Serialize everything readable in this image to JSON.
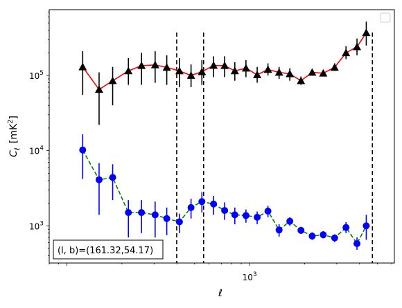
{
  "chart_data": {
    "type": "scatter",
    "xscale": "log",
    "yscale": "log",
    "xlim": [
      80,
      6200
    ],
    "ylim": [
      320,
      750000
    ],
    "xlabel": "ℓ",
    "ylabel_main": "C",
    "ylabel_sub": "ℓ",
    "ylabel_unit": "[mK",
    "ylabel_unit_sup": "2",
    "ylabel_unit_close": "]",
    "x_tick_labels": [
      {
        "value": 1000,
        "base": "10",
        "exp": "3"
      }
    ],
    "y_tick_labels": [
      {
        "value": 1000,
        "base": "10",
        "exp": "3"
      },
      {
        "value": 10000,
        "base": "10",
        "exp": "4"
      },
      {
        "value": 100000,
        "base": "10",
        "exp": "5"
      }
    ],
    "vlines": [
      399,
      560,
      4700
    ],
    "annotation": {
      "text": "(l, b)=(161.32,54.17)",
      "position": "bottom-left"
    },
    "legend": {
      "position": "top-right",
      "entries": []
    },
    "grid": false,
    "series": [
      {
        "marker": "triangle",
        "marker_color": "#000000",
        "line_color": "#ff0000",
        "line_style": "solid",
        "points": [
          {
            "x": 122,
            "y": 130000,
            "lo": 55000,
            "hi": 210000
          },
          {
            "x": 150,
            "y": 65000,
            "lo": 22000,
            "hi": 110000
          },
          {
            "x": 178,
            "y": 85000,
            "lo": 40000,
            "hi": 130000
          },
          {
            "x": 217,
            "y": 115000,
            "lo": 75000,
            "hi": 170000
          },
          {
            "x": 256,
            "y": 135000,
            "lo": 75000,
            "hi": 200000
          },
          {
            "x": 304,
            "y": 138000,
            "lo": 80000,
            "hi": 210000
          },
          {
            "x": 352,
            "y": 128000,
            "lo": 75000,
            "hi": 185000
          },
          {
            "x": 413,
            "y": 115000,
            "lo": 70000,
            "hi": 170000
          },
          {
            "x": 478,
            "y": 100000,
            "lo": 70000,
            "hi": 140000
          },
          {
            "x": 548,
            "y": 112000,
            "lo": 75000,
            "hi": 160000
          },
          {
            "x": 635,
            "y": 136000,
            "lo": 95000,
            "hi": 180000
          },
          {
            "x": 730,
            "y": 135000,
            "lo": 95000,
            "hi": 180000
          },
          {
            "x": 830,
            "y": 115000,
            "lo": 85000,
            "hi": 150000
          },
          {
            "x": 955,
            "y": 125000,
            "lo": 95000,
            "hi": 160000
          },
          {
            "x": 1100,
            "y": 102000,
            "lo": 80000,
            "hi": 130000
          },
          {
            "x": 1260,
            "y": 120000,
            "lo": 100000,
            "hi": 145000
          },
          {
            "x": 1450,
            "y": 110000,
            "lo": 90000,
            "hi": 130000
          },
          {
            "x": 1660,
            "y": 105000,
            "lo": 85000,
            "hi": 125000
          },
          {
            "x": 1910,
            "y": 85000,
            "lo": 75000,
            "hi": 97000
          },
          {
            "x": 2200,
            "y": 110000,
            "lo": 100000,
            "hi": 122000
          },
          {
            "x": 2530,
            "y": 107000,
            "lo": 98000,
            "hi": 118000
          },
          {
            "x": 2920,
            "y": 128000,
            "lo": 115000,
            "hi": 145000
          },
          {
            "x": 3370,
            "y": 200000,
            "lo": 165000,
            "hi": 245000
          },
          {
            "x": 3870,
            "y": 240000,
            "lo": 185000,
            "hi": 310000
          },
          {
            "x": 4350,
            "y": 370000,
            "lo": 250000,
            "hi": 520000
          }
        ]
      },
      {
        "marker": "circle",
        "marker_color": "#0000ff",
        "line_color": "#008000",
        "line_style": "dashed",
        "points": [
          {
            "x": 122,
            "y": 10200,
            "lo": 4200,
            "hi": 16500
          },
          {
            "x": 150,
            "y": 4100,
            "lo": 1400,
            "hi": 6800
          },
          {
            "x": 178,
            "y": 4400,
            "lo": 2200,
            "hi": 6600
          },
          {
            "x": 217,
            "y": 1500,
            "lo": 700,
            "hi": 2200
          },
          {
            "x": 256,
            "y": 1500,
            "lo": 800,
            "hi": 2200
          },
          {
            "x": 304,
            "y": 1400,
            "lo": 700,
            "hi": 2100
          },
          {
            "x": 352,
            "y": 1250,
            "lo": 750,
            "hi": 1750
          },
          {
            "x": 413,
            "y": 1130,
            "lo": 800,
            "hi": 1450
          },
          {
            "x": 478,
            "y": 1750,
            "lo": 1250,
            "hi": 2300
          },
          {
            "x": 548,
            "y": 2100,
            "lo": 1500,
            "hi": 2800
          },
          {
            "x": 635,
            "y": 1950,
            "lo": 1400,
            "hi": 2500
          },
          {
            "x": 730,
            "y": 1600,
            "lo": 1200,
            "hi": 2050
          },
          {
            "x": 830,
            "y": 1400,
            "lo": 1050,
            "hi": 1750
          },
          {
            "x": 955,
            "y": 1370,
            "lo": 1100,
            "hi": 1650
          },
          {
            "x": 1100,
            "y": 1300,
            "lo": 1050,
            "hi": 1550
          },
          {
            "x": 1260,
            "y": 1570,
            "lo": 1300,
            "hi": 1850
          },
          {
            "x": 1450,
            "y": 880,
            "lo": 720,
            "hi": 1050
          },
          {
            "x": 1660,
            "y": 1150,
            "lo": 1000,
            "hi": 1300
          },
          {
            "x": 1910,
            "y": 870,
            "lo": 780,
            "hi": 970
          },
          {
            "x": 2200,
            "y": 730,
            "lo": 650,
            "hi": 820
          },
          {
            "x": 2530,
            "y": 760,
            "lo": 680,
            "hi": 850
          },
          {
            "x": 2920,
            "y": 690,
            "lo": 610,
            "hi": 770
          },
          {
            "x": 3370,
            "y": 950,
            "lo": 800,
            "hi": 1120
          },
          {
            "x": 3870,
            "y": 580,
            "lo": 480,
            "hi": 700
          },
          {
            "x": 4350,
            "y": 1000,
            "lo": 650,
            "hi": 1400
          }
        ]
      }
    ]
  }
}
